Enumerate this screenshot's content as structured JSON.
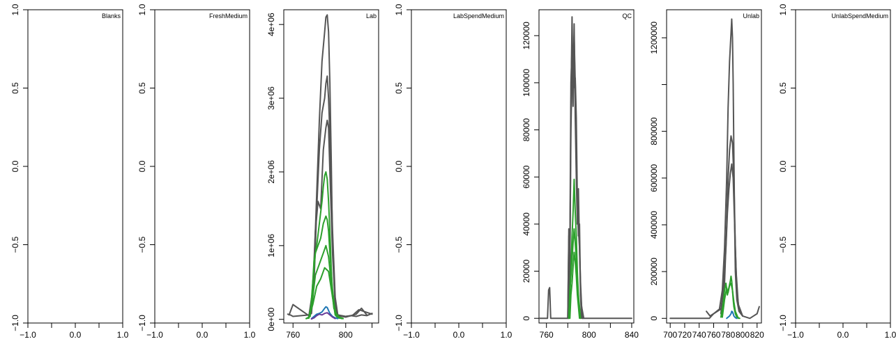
{
  "chart_data": [
    {
      "type": "line",
      "title": "Blanks",
      "empty": true,
      "xlim": [
        -1.0,
        1.0
      ],
      "ylim": [
        -1.0,
        1.0
      ],
      "x_ticks": [
        -1.0,
        -0.5,
        0.0,
        0.5,
        1.0
      ],
      "x_tick_labels": [
        "-1.0",
        "",
        "0.0",
        "",
        "1.0"
      ],
      "y_ticks": [
        -1.0,
        -0.5,
        0.0,
        0.5,
        1.0
      ],
      "y_tick_labels": [
        "-1.0",
        "-0.5",
        "0.0",
        "0.5",
        "1.0"
      ],
      "series": []
    },
    {
      "type": "line",
      "title": "FreshMedium",
      "empty": true,
      "xlim": [
        -1.0,
        1.0
      ],
      "ylim": [
        -1.0,
        1.0
      ],
      "x_ticks": [
        -1.0,
        -0.5,
        0.0,
        0.5,
        1.0
      ],
      "x_tick_labels": [
        "-1.0",
        "",
        "0.0",
        "",
        "1.0"
      ],
      "y_ticks": [
        -1.0,
        -0.5,
        0.0,
        0.5,
        1.0
      ],
      "y_tick_labels": [
        "-1.0",
        "-0.5",
        "0.0",
        "0.5",
        "1.0"
      ],
      "series": []
    },
    {
      "type": "line",
      "title": "Lab",
      "empty": false,
      "xlim": [
        753,
        825
      ],
      "ylim": [
        -50000,
        4200000
      ],
      "x_ticks": [
        760,
        780,
        800,
        820
      ],
      "x_tick_labels": [
        "760",
        "",
        "800",
        ""
      ],
      "y_ticks": [
        0,
        1000000,
        2000000,
        3000000,
        4000000
      ],
      "y_tick_labels": [
        "0e+00",
        "1e+06",
        "2e+06",
        "3e+06",
        "4e+06"
      ],
      "series": [
        {
          "color": "#555555",
          "width": 2,
          "x": [
            756,
            758,
            760,
            772,
            774,
            776,
            778,
            780,
            782,
            784,
            785,
            786,
            787,
            788,
            789,
            790,
            792,
            794,
            798,
            800,
            804,
            808,
            812,
            816,
            820
          ],
          "y": [
            70000,
            60000,
            40000,
            60000,
            120000,
            700000,
            1700000,
            2700000,
            3500000,
            3900000,
            4100000,
            4130000,
            3900000,
            3200000,
            2200000,
            1000000,
            200000,
            60000,
            40000,
            40000,
            50000,
            40000,
            60000,
            50000,
            80000
          ]
        },
        {
          "color": "#555555",
          "width": 2,
          "x": [
            757,
            760,
            772,
            774,
            776,
            778,
            780,
            782,
            784,
            785,
            786,
            787,
            788,
            790,
            792,
            794,
            800,
            805,
            810,
            815,
            820
          ],
          "y": [
            60000,
            200000,
            50000,
            80000,
            500000,
            1500000,
            2300000,
            2800000,
            3000000,
            3200000,
            3300000,
            3000000,
            2500000,
            1200000,
            300000,
            60000,
            40000,
            50000,
            130000,
            100000,
            70000
          ]
        },
        {
          "color": "#555555",
          "width": 2,
          "x": [
            772,
            775,
            777,
            779,
            781,
            783,
            785,
            786,
            787,
            788,
            790,
            792,
            794,
            800,
            808,
            812,
            816
          ],
          "y": [
            40000,
            400000,
            1200000,
            1600000,
            1500000,
            2300000,
            2600000,
            2700000,
            2600000,
            2000000,
            900000,
            200000,
            50000,
            30000,
            70000,
            150000,
            60000
          ]
        },
        {
          "color": "#2ca02c",
          "width": 2,
          "x": [
            770,
            772,
            774,
            776,
            778,
            780,
            782,
            783,
            784,
            785,
            786,
            787,
            788,
            789,
            790,
            792,
            794,
            798
          ],
          "y": [
            10000,
            20000,
            200000,
            800000,
            1000000,
            1300000,
            1600000,
            1800000,
            1950000,
            2000000,
            1900000,
            1600000,
            1200000,
            700000,
            300000,
            60000,
            20000,
            10000
          ]
        },
        {
          "color": "#2ca02c",
          "width": 2,
          "x": [
            770,
            773,
            775,
            777,
            779,
            781,
            783,
            785,
            786,
            787,
            788,
            790,
            792,
            795,
            798
          ],
          "y": [
            10000,
            40000,
            500000,
            900000,
            1000000,
            1100000,
            1300000,
            1400000,
            1350000,
            1200000,
            900000,
            400000,
            100000,
            30000,
            10000
          ]
        },
        {
          "color": "#2ca02c",
          "width": 2,
          "x": [
            772,
            775,
            777,
            779,
            781,
            783,
            785,
            787,
            789,
            791,
            794,
            798
          ],
          "y": [
            20000,
            300000,
            600000,
            700000,
            800000,
            900000,
            1000000,
            850000,
            500000,
            150000,
            30000,
            10000
          ]
        },
        {
          "color": "#2ca02c",
          "width": 2,
          "x": [
            772,
            775,
            778,
            781,
            784,
            787,
            790,
            793,
            797
          ],
          "y": [
            15000,
            200000,
            450000,
            550000,
            700000,
            650000,
            300000,
            50000,
            10000
          ]
        },
        {
          "color": "#1f77b4",
          "width": 2,
          "x": [
            774,
            776,
            778,
            780,
            782,
            784,
            785,
            786,
            787,
            788,
            790,
            792,
            794
          ],
          "y": [
            10000,
            40000,
            70000,
            80000,
            100000,
            150000,
            170000,
            160000,
            120000,
            80000,
            40000,
            20000,
            10000
          ]
        },
        {
          "color": "#6a3d9a",
          "width": 2,
          "x": [
            774,
            776,
            778,
            780,
            782,
            784,
            786,
            788,
            790,
            792
          ],
          "y": [
            5000,
            20000,
            50000,
            70000,
            60000,
            80000,
            90000,
            60000,
            30000,
            10000
          ]
        }
      ]
    },
    {
      "type": "line",
      "title": "LabSpendMedium",
      "empty": true,
      "xlim": [
        -1.0,
        1.0
      ],
      "ylim": [
        -1.0,
        1.0
      ],
      "x_ticks": [
        -1.0,
        -0.5,
        0.0,
        0.5,
        1.0
      ],
      "x_tick_labels": [
        "-1.0",
        "",
        "0.0",
        "",
        "1.0"
      ],
      "y_ticks": [
        -1.0,
        -0.5,
        0.0,
        0.5,
        1.0
      ],
      "y_tick_labels": [
        "-1.0",
        "-0.5",
        "0.0",
        "0.5",
        "1.0"
      ],
      "series": []
    },
    {
      "type": "line",
      "title": "QC",
      "empty": false,
      "xlim": [
        753,
        842
      ],
      "ylim": [
        -2000,
        131000
      ],
      "x_ticks": [
        760,
        780,
        800,
        820,
        840
      ],
      "x_tick_labels": [
        "760",
        "",
        "800",
        "",
        "840"
      ],
      "y_ticks": [
        0,
        20000,
        40000,
        60000,
        80000,
        100000,
        120000
      ],
      "y_tick_labels": [
        "0",
        "20000",
        "40000",
        "60000",
        "80000",
        "100000",
        "120000"
      ],
      "series": [
        {
          "color": "#555555",
          "width": 2,
          "x": [
            753,
            761,
            762,
            763,
            764,
            780,
            781,
            782,
            783,
            784,
            785,
            786,
            787,
            788,
            789,
            790,
            791,
            792,
            793,
            800,
            840
          ],
          "y": [
            0,
            0,
            12000,
            13000,
            0,
            0,
            35000,
            20000,
            90000,
            128000,
            95000,
            125000,
            85000,
            60000,
            40000,
            55000,
            30000,
            10000,
            0,
            0,
            0
          ]
        },
        {
          "color": "#555555",
          "width": 2,
          "x": [
            780,
            781,
            782,
            783,
            784,
            785,
            786,
            787,
            788,
            789,
            790,
            791,
            792,
            793,
            795
          ],
          "y": [
            0,
            38000,
            30000,
            100000,
            115000,
            90000,
            120000,
            100000,
            75000,
            45000,
            38000,
            30000,
            15000,
            5000,
            0
          ]
        },
        {
          "color": "#555555",
          "width": 2,
          "x": [
            781,
            782,
            783,
            784,
            785,
            786,
            787,
            788,
            789,
            790,
            791,
            792,
            794
          ],
          "y": [
            0,
            25000,
            80000,
            105000,
            110000,
            98000,
            102000,
            85000,
            50000,
            35000,
            40000,
            10000,
            0
          ]
        },
        {
          "color": "#2ca02c",
          "width": 2,
          "x": [
            781,
            782,
            783,
            784,
            785,
            786,
            787,
            788,
            789,
            790,
            792
          ],
          "y": [
            0,
            10000,
            20000,
            35000,
            45000,
            59000,
            45000,
            35000,
            20000,
            10000,
            0
          ]
        },
        {
          "color": "#2ca02c",
          "width": 2,
          "x": [
            781,
            782,
            783,
            784,
            785,
            786,
            787,
            788,
            789,
            790,
            792
          ],
          "y": [
            0,
            12000,
            18000,
            25000,
            32000,
            38000,
            32000,
            25000,
            15000,
            8000,
            0
          ]
        },
        {
          "color": "#2ca02c",
          "width": 2,
          "x": [
            782,
            783,
            784,
            785,
            786,
            787,
            788,
            789,
            791
          ],
          "y": [
            0,
            10000,
            15000,
            22000,
            28000,
            24000,
            18000,
            10000,
            0
          ]
        }
      ]
    },
    {
      "type": "line",
      "title": "Unlab",
      "empty": false,
      "xlim": [
        695,
        826
      ],
      "ylim": [
        -20000,
        1320000
      ],
      "x_ticks": [
        700,
        720,
        740,
        760,
        780,
        800,
        820
      ],
      "x_tick_labels": [
        "700",
        "720",
        "740",
        "760",
        "780",
        "800",
        "820"
      ],
      "y_ticks": [
        0,
        200000,
        400000,
        600000,
        800000,
        1000000,
        1200000
      ],
      "y_tick_labels": [
        "0",
        "200000",
        "400000",
        "600000",
        "800000",
        "",
        "1200000"
      ],
      "series": [
        {
          "color": "#555555",
          "width": 2,
          "x": [
            700,
            740,
            754,
            760,
            768,
            772,
            775,
            778,
            780,
            782,
            784,
            785,
            786,
            787,
            788,
            789,
            790,
            792,
            795,
            800,
            810,
            815,
            820,
            823
          ],
          "y": [
            0,
            0,
            0,
            20000,
            40000,
            120000,
            300000,
            600000,
            900000,
            1100000,
            1220000,
            1280000,
            1200000,
            1000000,
            700000,
            400000,
            200000,
            80000,
            30000,
            10000,
            0,
            10000,
            20000,
            50000
          ]
        },
        {
          "color": "#555555",
          "width": 2,
          "x": [
            750,
            755,
            760,
            770,
            775,
            778,
            780,
            782,
            784,
            786,
            788,
            790,
            792,
            795,
            800
          ],
          "y": [
            30000,
            10000,
            20000,
            40000,
            150000,
            400000,
            600000,
            720000,
            780000,
            750000,
            600000,
            300000,
            120000,
            40000,
            10000
          ]
        },
        {
          "color": "#555555",
          "width": 2,
          "x": [
            770,
            774,
            777,
            779,
            781,
            783,
            785,
            787,
            789,
            791,
            794,
            800
          ],
          "y": [
            20000,
            150000,
            300000,
            450000,
            550000,
            620000,
            660000,
            600000,
            400000,
            200000,
            60000,
            10000
          ]
        },
        {
          "color": "#2ca02c",
          "width": 2,
          "x": [
            770,
            773,
            775,
            777,
            779,
            781,
            783,
            784,
            785,
            786,
            787,
            788,
            790,
            792,
            796
          ],
          "y": [
            5000,
            60000,
            120000,
            150000,
            100000,
            130000,
            160000,
            180000,
            160000,
            120000,
            80000,
            50000,
            20000,
            5000,
            0
          ]
        },
        {
          "color": "#2ca02c",
          "width": 2,
          "x": [
            772,
            775,
            778,
            780,
            782,
            784,
            786,
            788,
            790,
            794
          ],
          "y": [
            5000,
            80000,
            130000,
            110000,
            140000,
            150000,
            120000,
            70000,
            30000,
            0
          ]
        },
        {
          "color": "#1f77b4",
          "width": 2,
          "x": [
            778,
            780,
            782,
            784,
            785,
            786,
            787,
            788,
            790,
            792
          ],
          "y": [
            0,
            5000,
            10000,
            20000,
            30000,
            28000,
            20000,
            10000,
            3000,
            0
          ]
        }
      ]
    },
    {
      "type": "line",
      "title": "UnlabSpendMedium",
      "empty": true,
      "xlim": [
        -1.0,
        1.0
      ],
      "ylim": [
        -1.0,
        1.0
      ],
      "x_ticks": [
        -1.0,
        -0.5,
        0.0,
        0.5,
        1.0
      ],
      "x_tick_labels": [
        "-1.0",
        "",
        "0.0",
        "",
        "1.0"
      ],
      "y_ticks": [
        -1.0,
        -0.5,
        0.0,
        0.5,
        1.0
      ],
      "y_tick_labels": [
        "-1.0",
        "-0.5",
        "0.0",
        "0.5",
        "1.0"
      ],
      "series": []
    }
  ]
}
